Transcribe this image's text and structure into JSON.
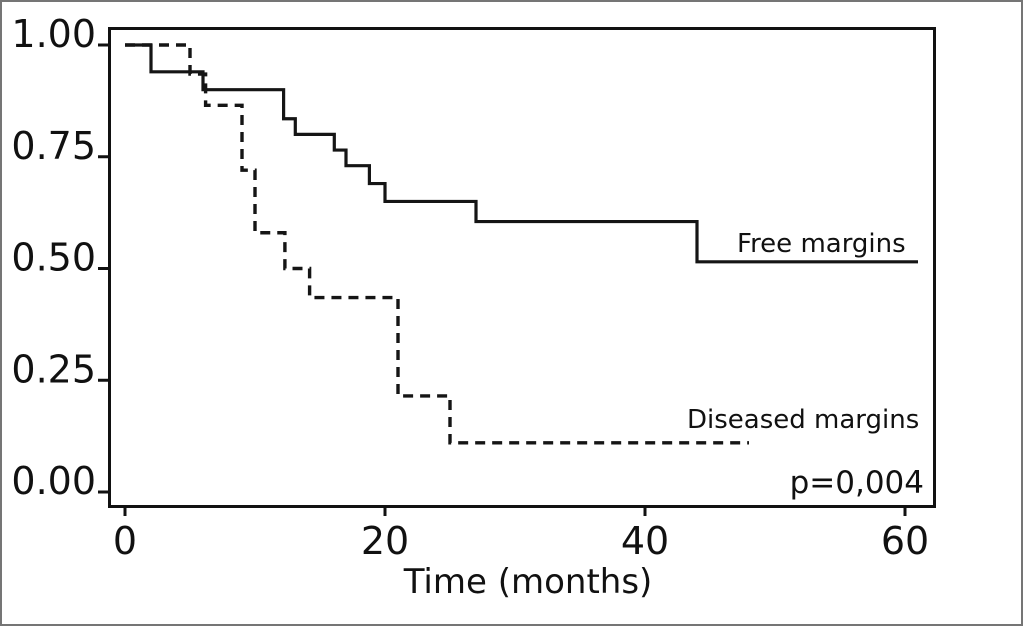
{
  "chart_data": {
    "type": "line",
    "subtype": "kaplan-meier-step",
    "title": "",
    "xlabel": "Time (months)",
    "ylabel": "",
    "xlim": [
      0,
      61
    ],
    "ylim": [
      0.0,
      1.0
    ],
    "grid": false,
    "frame": true,
    "line_color": "#151515",
    "x_ticks": [
      {
        "value": 0,
        "label": "0"
      },
      {
        "value": 20,
        "label": "20"
      },
      {
        "value": 40,
        "label": "40"
      },
      {
        "value": 60,
        "label": "60"
      }
    ],
    "y_ticks": [
      {
        "value": 1.0,
        "label": "1.00"
      },
      {
        "value": 0.75,
        "label": "0.75"
      },
      {
        "value": 0.5,
        "label": "0.50"
      },
      {
        "value": 0.25,
        "label": "0.25"
      },
      {
        "value": 0.0,
        "label": "0.00"
      }
    ],
    "series": [
      {
        "name": "Free margins",
        "line_style": "solid",
        "start": [
          0,
          1.0
        ],
        "drops": [
          [
            2,
            0.94
          ],
          [
            6,
            0.9
          ],
          [
            12.2,
            0.835
          ],
          [
            13.1,
            0.8
          ],
          [
            16.1,
            0.765
          ],
          [
            17,
            0.73
          ],
          [
            18.8,
            0.69
          ],
          [
            20,
            0.65
          ],
          [
            27,
            0.605
          ],
          [
            44,
            0.515
          ]
        ],
        "end_time": 61
      },
      {
        "name": "Diseased margins",
        "line_style": "dashed",
        "start": [
          0,
          1.0
        ],
        "drops": [
          [
            5,
            0.935
          ],
          [
            6.2,
            0.865
          ],
          [
            9,
            0.72
          ],
          [
            10,
            0.58
          ],
          [
            12.3,
            0.5
          ],
          [
            14.2,
            0.435
          ],
          [
            21,
            0.215
          ],
          [
            25,
            0.11
          ]
        ],
        "end_time": 48
      }
    ],
    "annotations": {
      "free_label": "Free margins",
      "diseased_label": "Diseased margins",
      "p_value": "p=0,004"
    }
  }
}
